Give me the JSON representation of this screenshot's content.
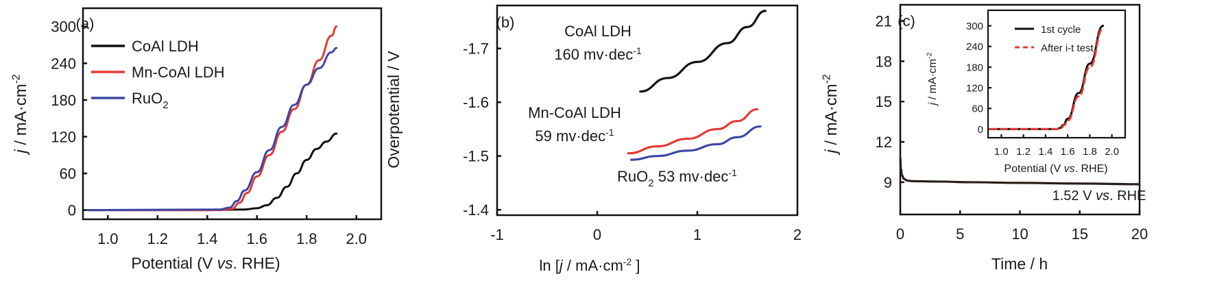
{
  "chart_data": [
    {
      "panel": "(a)",
      "type": "line",
      "xlabel": "Potential (V vs. RHE)",
      "ylabel": "j / mA·cm-2",
      "xlim": [
        0.9,
        2.1
      ],
      "ylim": [
        -15,
        330
      ],
      "xticks": [
        "1.0",
        "1.2",
        "1.4",
        "1.6",
        "1.8",
        "2.0"
      ],
      "xtick_values": [
        1.0,
        1.2,
        1.4,
        1.6,
        1.8,
        2.0
      ],
      "yticks": [
        "0",
        "60",
        "120",
        "180",
        "240",
        "300"
      ],
      "ytick_values": [
        0,
        60,
        120,
        180,
        240,
        300
      ],
      "legend_position": "top-left",
      "series": [
        {
          "name": "CoAl LDH",
          "color": "#111111",
          "x": [
            0.92,
            1.4,
            1.55,
            1.6,
            1.64,
            1.68,
            1.72,
            1.76,
            1.8,
            1.84,
            1.88,
            1.92
          ],
          "y": [
            0,
            0,
            1,
            3,
            8,
            20,
            38,
            60,
            82,
            100,
            112,
            125
          ]
        },
        {
          "name": "Mn-CoAl LDH",
          "color": "#e53935",
          "x": [
            0.92,
            1.45,
            1.5,
            1.53,
            1.56,
            1.6,
            1.65,
            1.7,
            1.75,
            1.8,
            1.85,
            1.9,
            1.92
          ],
          "y": [
            0,
            0,
            2,
            12,
            28,
            55,
            90,
            128,
            165,
            205,
            245,
            285,
            300
          ]
        },
        {
          "name": "RuO₂",
          "color": "#3a47a6",
          "x": [
            0.92,
            1.45,
            1.49,
            1.52,
            1.55,
            1.6,
            1.65,
            1.7,
            1.75,
            1.8,
            1.85,
            1.9,
            1.92
          ],
          "y": [
            0,
            1,
            4,
            15,
            32,
            62,
            98,
            136,
            172,
            205,
            232,
            258,
            265
          ]
        }
      ]
    },
    {
      "panel": "(b)",
      "type": "line",
      "xlabel": "ln [j / mA·cm-2 ]",
      "ylabel": "Overpotential / V",
      "xlim": [
        -1,
        2
      ],
      "ylim": [
        -1.39,
        -1.78
      ],
      "xticks": [
        "-1",
        "0",
        "1",
        "2"
      ],
      "xtick_values": [
        -1,
        0,
        1,
        2
      ],
      "yticks": [
        "-1.4",
        "-1.5",
        "-1.6",
        "-1.7"
      ],
      "ytick_values": [
        -1.4,
        -1.5,
        -1.6,
        -1.7
      ],
      "annotations": [
        {
          "label": "CoAl LDH",
          "sub": "160 mv·dec",
          "sup": "-1"
        },
        {
          "label": "Mn-CoAl LDH",
          "sub": "59 mv·dec",
          "sup": "-1"
        },
        {
          "label": "RuO₂  53 mv·dec",
          "sup": "-1"
        }
      ],
      "series": [
        {
          "name": "CoAl LDH",
          "color": "#111111",
          "x": [
            0.43,
            0.7,
            1.0,
            1.3,
            1.5,
            1.68
          ],
          "y": [
            -1.62,
            -1.645,
            -1.675,
            -1.71,
            -1.74,
            -1.77
          ]
        },
        {
          "name": "Mn-CoAl LDH",
          "color": "#e53935",
          "x": [
            0.31,
            0.6,
            0.9,
            1.2,
            1.4,
            1.6
          ],
          "y": [
            -1.505,
            -1.518,
            -1.532,
            -1.55,
            -1.565,
            -1.587
          ]
        },
        {
          "name": "RuO₂",
          "color": "#3a47a6",
          "x": [
            0.34,
            0.6,
            0.9,
            1.2,
            1.4,
            1.63
          ],
          "y": [
            -1.493,
            -1.5,
            -1.51,
            -1.522,
            -1.535,
            -1.555
          ]
        }
      ]
    },
    {
      "panel": "(c)",
      "type": "line",
      "xlabel": "Time / h",
      "ylabel": "j / mA·cm-2",
      "xlim": [
        0,
        20
      ],
      "ylim": [
        6.6,
        22.2
      ],
      "xticks": [
        "0",
        "5",
        "10",
        "15",
        "20"
      ],
      "xtick_values": [
        0,
        5,
        10,
        15,
        20
      ],
      "yticks": [
        "9",
        "12",
        "15",
        "18",
        "21"
      ],
      "ytick_values": [
        9,
        12,
        15,
        18,
        21
      ],
      "annotation": "1.52 V vs. RHE",
      "series": [
        {
          "name": "i-t",
          "color": "#2a1f1a",
          "x": [
            0,
            0.05,
            0.15,
            0.3,
            0.6,
            1,
            3,
            6,
            10,
            15,
            20
          ],
          "y": [
            10.8,
            10.0,
            9.5,
            9.25,
            9.12,
            9.08,
            9.05,
            9.0,
            8.95,
            8.9,
            8.85
          ]
        }
      ],
      "inset": {
        "type": "line",
        "xlabel": "Potential (V vs. RHE)",
        "ylabel": "j / mA·cm-2",
        "xlim": [
          0.88,
          2.12
        ],
        "ylim": [
          -25,
          345
        ],
        "xticks": [
          "1.0",
          "1.2",
          "1.4",
          "1.6",
          "1.8",
          "2.0"
        ],
        "xtick_values": [
          1.0,
          1.2,
          1.4,
          1.6,
          1.8,
          2.0
        ],
        "yticks": [
          "0",
          "60",
          "120",
          "180",
          "240",
          "300"
        ],
        "ytick_values": [
          0,
          60,
          120,
          180,
          240,
          300
        ],
        "legend_position": "top-left",
        "series": [
          {
            "name": "1st cycle",
            "color": "#111111",
            "dash": false,
            "x": [
              0.9,
              1.5,
              1.53,
              1.56,
              1.6,
              1.7,
              1.8,
              1.92
            ],
            "y": [
              0,
              0,
              3,
              12,
              30,
              105,
              190,
              300
            ]
          },
          {
            "name": "After i-t test",
            "color": "#e53935",
            "dash": true,
            "x": [
              0.9,
              1.5,
              1.54,
              1.57,
              1.6,
              1.7,
              1.8,
              1.92
            ],
            "y": [
              0,
              0,
              3,
              12,
              25,
              95,
              180,
              292
            ]
          }
        ]
      }
    }
  ]
}
